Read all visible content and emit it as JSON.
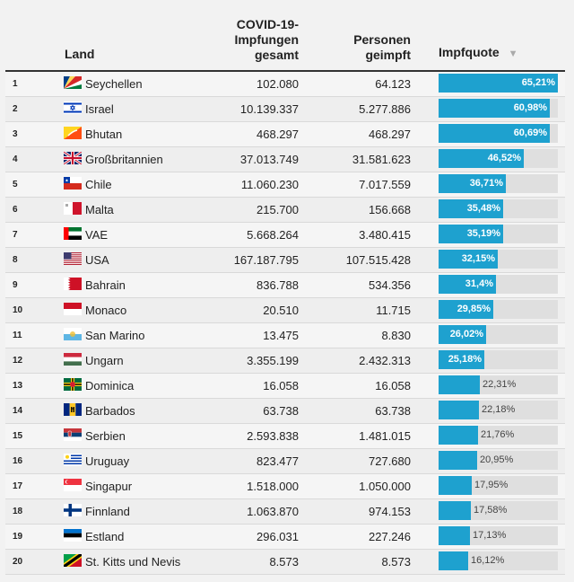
{
  "header": {
    "land": "Land",
    "impfungen": [
      "COVID-19-",
      "Impfungen",
      "gesamt"
    ],
    "personen": [
      "Personen",
      "geimpft"
    ],
    "quote": "Impfquote",
    "sort_icon": "▼"
  },
  "colors": {
    "bar": "#1ea1cf",
    "track": "#dfdfdf"
  },
  "chart_data": {
    "type": "table",
    "title": "",
    "columns": [
      "Land",
      "COVID-19-Impfungen gesamt",
      "Personen geimpft",
      "Impfquote"
    ],
    "xlim": [
      0,
      65.21
    ],
    "rows": [
      {
        "rank": "1",
        "country": "Seychellen",
        "flag": "seychelles-flag",
        "impfungen": "102.080",
        "personen": "64.123",
        "quote_label": "65,21%",
        "quote": 65.21
      },
      {
        "rank": "2",
        "country": "Israel",
        "flag": "israel-flag",
        "impfungen": "10.139.337",
        "personen": "5.277.886",
        "quote_label": "60,98%",
        "quote": 60.98
      },
      {
        "rank": "3",
        "country": "Bhutan",
        "flag": "bhutan-flag",
        "impfungen": "468.297",
        "personen": "468.297",
        "quote_label": "60,69%",
        "quote": 60.69
      },
      {
        "rank": "4",
        "country": "Großbritannien",
        "flag": "uk-flag",
        "impfungen": "37.013.749",
        "personen": "31.581.623",
        "quote_label": "46,52%",
        "quote": 46.52
      },
      {
        "rank": "5",
        "country": "Chile",
        "flag": "chile-flag",
        "impfungen": "11.060.230",
        "personen": "7.017.559",
        "quote_label": "36,71%",
        "quote": 36.71
      },
      {
        "rank": "6",
        "country": "Malta",
        "flag": "malta-flag",
        "impfungen": "215.700",
        "personen": "156.668",
        "quote_label": "35,48%",
        "quote": 35.48
      },
      {
        "rank": "7",
        "country": "VAE",
        "flag": "uae-flag",
        "impfungen": "5.668.264",
        "personen": "3.480.415",
        "quote_label": "35,19%",
        "quote": 35.19
      },
      {
        "rank": "8",
        "country": "USA",
        "flag": "usa-flag",
        "impfungen": "167.187.795",
        "personen": "107.515.428",
        "quote_label": "32,15%",
        "quote": 32.15
      },
      {
        "rank": "9",
        "country": "Bahrain",
        "flag": "bahrain-flag",
        "impfungen": "836.788",
        "personen": "534.356",
        "quote_label": "31,4%",
        "quote": 31.4
      },
      {
        "rank": "10",
        "country": "Monaco",
        "flag": "monaco-flag",
        "impfungen": "20.510",
        "personen": "11.715",
        "quote_label": "29,85%",
        "quote": 29.85
      },
      {
        "rank": "11",
        "country": "San Marino",
        "flag": "san-marino-flag",
        "impfungen": "13.475",
        "personen": "8.830",
        "quote_label": "26,02%",
        "quote": 26.02
      },
      {
        "rank": "12",
        "country": "Ungarn",
        "flag": "hungary-flag",
        "impfungen": "3.355.199",
        "personen": "2.432.313",
        "quote_label": "25,18%",
        "quote": 25.18
      },
      {
        "rank": "13",
        "country": "Dominica",
        "flag": "dominica-flag",
        "impfungen": "16.058",
        "personen": "16.058",
        "quote_label": "22,31%",
        "quote": 22.31
      },
      {
        "rank": "14",
        "country": "Barbados",
        "flag": "barbados-flag",
        "impfungen": "63.738",
        "personen": "63.738",
        "quote_label": "22,18%",
        "quote": 22.18
      },
      {
        "rank": "15",
        "country": "Serbien",
        "flag": "serbia-flag",
        "impfungen": "2.593.838",
        "personen": "1.481.015",
        "quote_label": "21,76%",
        "quote": 21.76
      },
      {
        "rank": "16",
        "country": "Uruguay",
        "flag": "uruguay-flag",
        "impfungen": "823.477",
        "personen": "727.680",
        "quote_label": "20,95%",
        "quote": 20.95
      },
      {
        "rank": "17",
        "country": "Singapur",
        "flag": "singapore-flag",
        "impfungen": "1.518.000",
        "personen": "1.050.000",
        "quote_label": "17,95%",
        "quote": 17.95
      },
      {
        "rank": "18",
        "country": "Finnland",
        "flag": "finland-flag",
        "impfungen": "1.063.870",
        "personen": "974.153",
        "quote_label": "17,58%",
        "quote": 17.58
      },
      {
        "rank": "19",
        "country": "Estland",
        "flag": "estonia-flag",
        "impfungen": "296.031",
        "personen": "227.246",
        "quote_label": "17,13%",
        "quote": 17.13
      },
      {
        "rank": "20",
        "country": "St. Kitts und Nevis",
        "flag": "st-kitts-nevis-flag",
        "impfungen": "8.573",
        "personen": "8.573",
        "quote_label": "16,12%",
        "quote": 16.12
      }
    ]
  }
}
